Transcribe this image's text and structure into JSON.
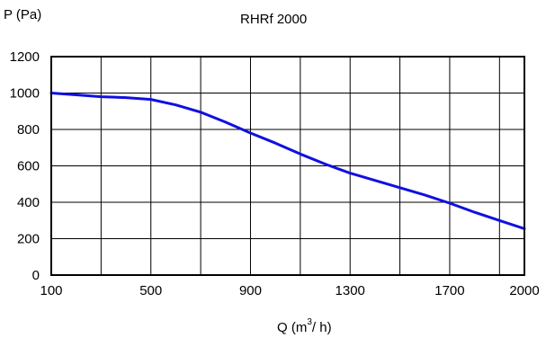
{
  "chart_data": {
    "type": "line",
    "title": "RHRf 2000",
    "ylabel": "P  (Pa)",
    "xlabel_prefix": "Q  (m",
    "xlabel_sup": "3",
    "xlabel_suffix": "/ h)",
    "xlim": [
      100,
      2000
    ],
    "ylim": [
      0,
      1200
    ],
    "x_ticks": [
      "100",
      "500",
      "900",
      "1300",
      "1700",
      "2000"
    ],
    "y_ticks": [
      "0",
      "200",
      "400",
      "600",
      "800",
      "1000",
      "1200"
    ],
    "grid": true,
    "series": [
      {
        "color": "#1010e0",
        "x": [
          100,
          200,
          300,
          400,
          500,
          600,
          700,
          800,
          900,
          1000,
          1100,
          1200,
          1300,
          1400,
          1500,
          1600,
          1700,
          1800,
          1900,
          2000
        ],
        "y": [
          1000,
          990,
          980,
          975,
          965,
          935,
          895,
          840,
          780,
          725,
          665,
          610,
          560,
          520,
          480,
          440,
          395,
          345,
          300,
          255
        ]
      }
    ]
  }
}
